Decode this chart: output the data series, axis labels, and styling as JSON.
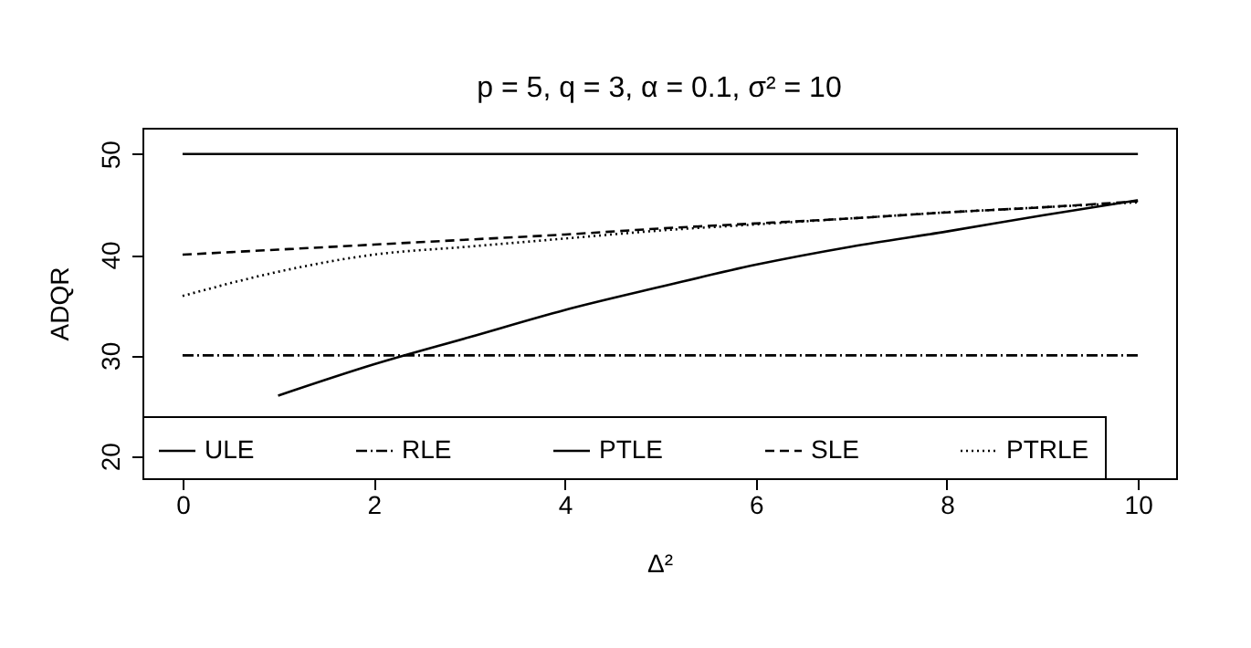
{
  "chart_data": {
    "type": "line",
    "title": "p = 5, q = 3, α = 0.1, σ² = 10",
    "xlabel": "Δ²",
    "ylabel": "ADQR",
    "x": [
      0,
      1,
      2,
      3,
      4,
      5,
      6,
      7,
      8,
      9,
      10
    ],
    "series": [
      {
        "name": "ULE",
        "color": "#000000",
        "line_style": "solid",
        "values": [
          50,
          50,
          50,
          50,
          50,
          50,
          50,
          50,
          50,
          50,
          50
        ]
      },
      {
        "name": "RLE",
        "color": "#000000",
        "line_style": "dashdot",
        "values": [
          30,
          30,
          30,
          30,
          30,
          30,
          30,
          30,
          30,
          30,
          30
        ]
      },
      {
        "name": "PTLE",
        "color": "#000000",
        "line_style": "solid",
        "values": [
          null,
          26,
          29.1,
          31.8,
          34.5,
          36.8,
          39,
          40.8,
          42.3,
          43.9,
          45.4
        ]
      },
      {
        "name": "SLE",
        "color": "#000000",
        "line_style": "dashed",
        "values": [
          40,
          40.5,
          41,
          41.5,
          42,
          42.6,
          43.1,
          43.6,
          44.2,
          44.7,
          45.3
        ]
      },
      {
        "name": "PTRLE",
        "color": "#000000",
        "line_style": "dotted",
        "values": [
          35.9,
          38.3,
          40,
          40.8,
          41.6,
          42.4,
          43,
          43.6,
          44.2,
          44.7,
          45.2
        ]
      }
    ],
    "xlim": [
      -0.42,
      10.4
    ],
    "ylim": [
      17.8,
      52.6
    ],
    "xticks": [
      0,
      2,
      4,
      6,
      8,
      10
    ],
    "yticks": [
      20,
      30,
      40,
      50
    ],
    "grid": false,
    "legend": "bottom"
  }
}
